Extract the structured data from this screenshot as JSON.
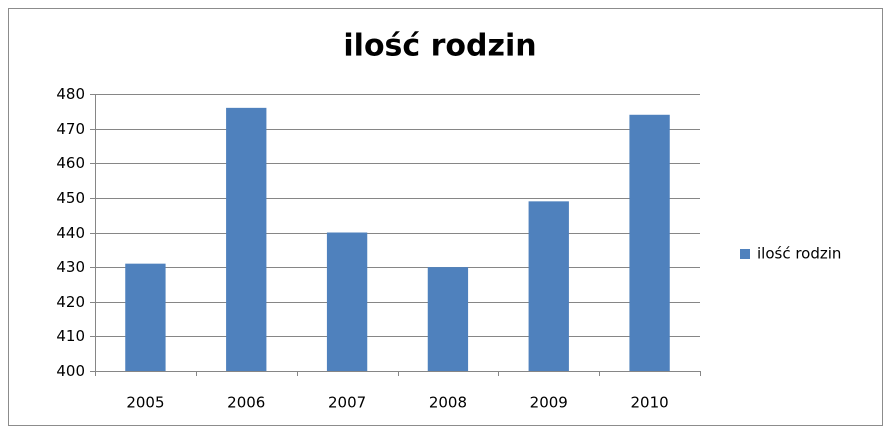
{
  "chart_data": {
    "type": "bar",
    "title": "ilość rodzin",
    "categories": [
      "2005",
      "2006",
      "2007",
      "2008",
      "2009",
      "2010"
    ],
    "series": [
      {
        "name": "ilość rodzin",
        "color": "#4f81bd",
        "values": [
          431,
          476,
          440,
          430,
          449,
          474
        ]
      }
    ],
    "ylim": [
      400,
      480
    ],
    "yticks": [
      400,
      410,
      420,
      430,
      440,
      450,
      460,
      470,
      480
    ],
    "grid": true,
    "legend": "right"
  }
}
